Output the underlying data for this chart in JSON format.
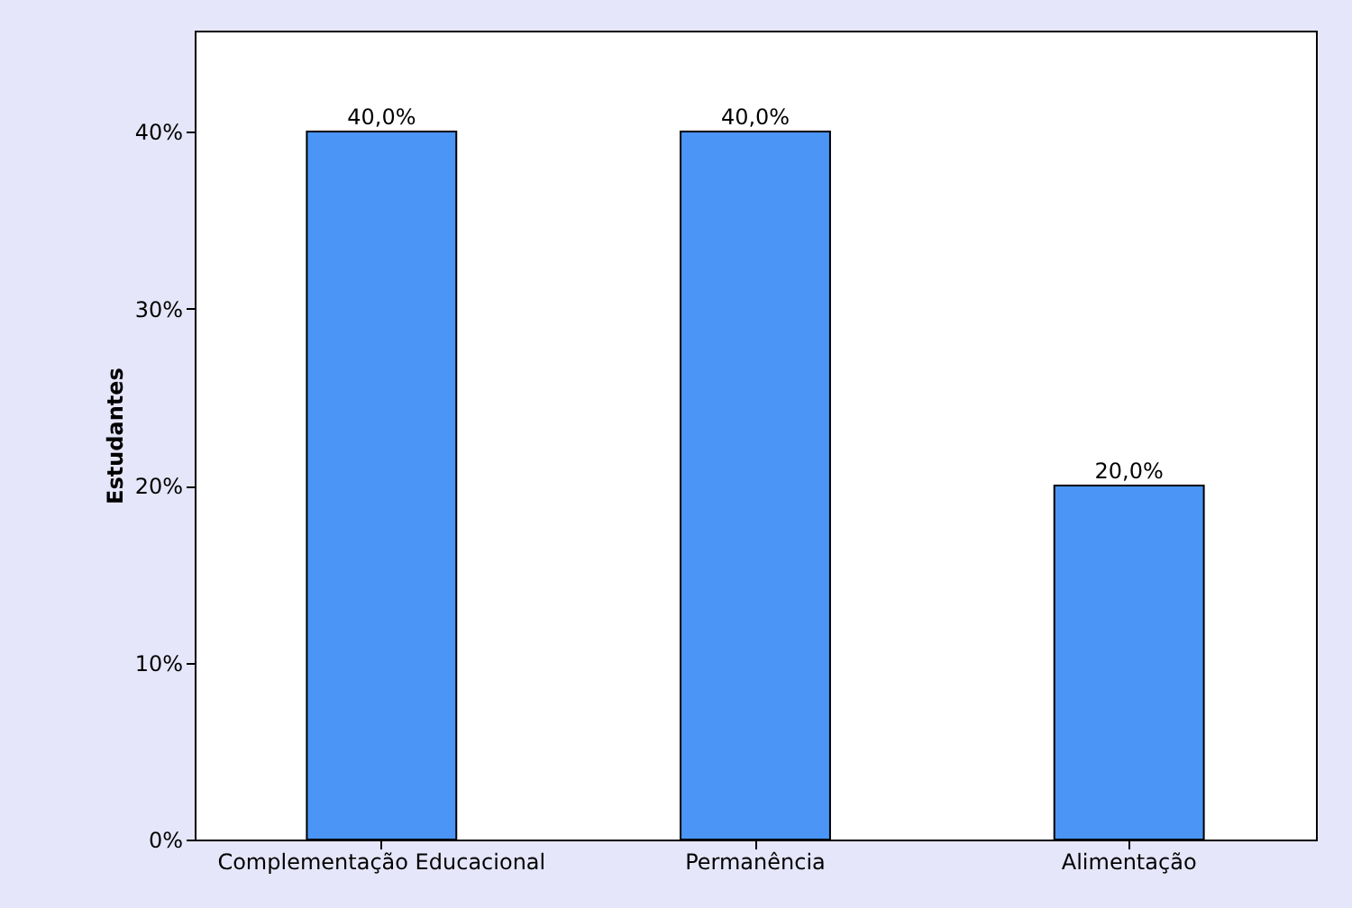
{
  "chart_data": {
    "type": "bar",
    "ylabel": "Estudantes",
    "categories": [
      "Complementação Educacional",
      "Permanência",
      "Alimentação"
    ],
    "values": [
      40,
      40,
      20
    ],
    "value_labels": [
      "40,0%",
      "40,0%",
      "20,0%"
    ],
    "color": "#4a95f5",
    "ylim": [
      0,
      45.7
    ],
    "yticks": [
      {
        "value": 0,
        "label": "0%"
      },
      {
        "value": 10,
        "label": "10%"
      },
      {
        "value": 20,
        "label": "20%"
      },
      {
        "value": 30,
        "label": "30%"
      },
      {
        "value": 40,
        "label": "40%"
      }
    ]
  }
}
